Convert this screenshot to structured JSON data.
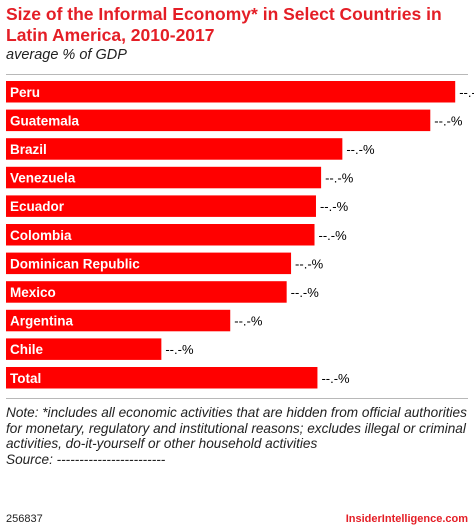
{
  "chart_data": {
    "type": "bar",
    "orientation": "horizontal",
    "title": "Size of the Informal Economy* in Select Countries in Latin America, 2010-2017",
    "subtitle": "average % of GDP",
    "categories": [
      "Peru",
      "Guatemala",
      "Brazil",
      "Venezuela",
      "Ecuador",
      "Colombia",
      "Dominican Republic",
      "Mexico",
      "Argentina",
      "Chile",
      "Total"
    ],
    "values": [
      61.3,
      57.9,
      45.9,
      43.0,
      42.3,
      42.1,
      38.9,
      38.3,
      30.6,
      21.2,
      42.5
    ],
    "data_labels": [
      "--.-%",
      "--.-%",
      "--.-%",
      "--.-%",
      "--.-%",
      "--.-%",
      "--.-%",
      "--.-%",
      "--.-%",
      "--.-%",
      "--.-%"
    ],
    "xlim": [
      0,
      62.5
    ],
    "grid": false,
    "bar_color": "#ff0000"
  },
  "note": "Note: *includes all economic activities that are hidden from official authorities for monetary, regulatory and institutional reasons; excludes illegal or criminal activities, do-it-yourself or other household activities",
  "source": "Source: ------------------------",
  "footer": {
    "chart_id": "256837",
    "brand": "InsiderIntelligence.com"
  }
}
